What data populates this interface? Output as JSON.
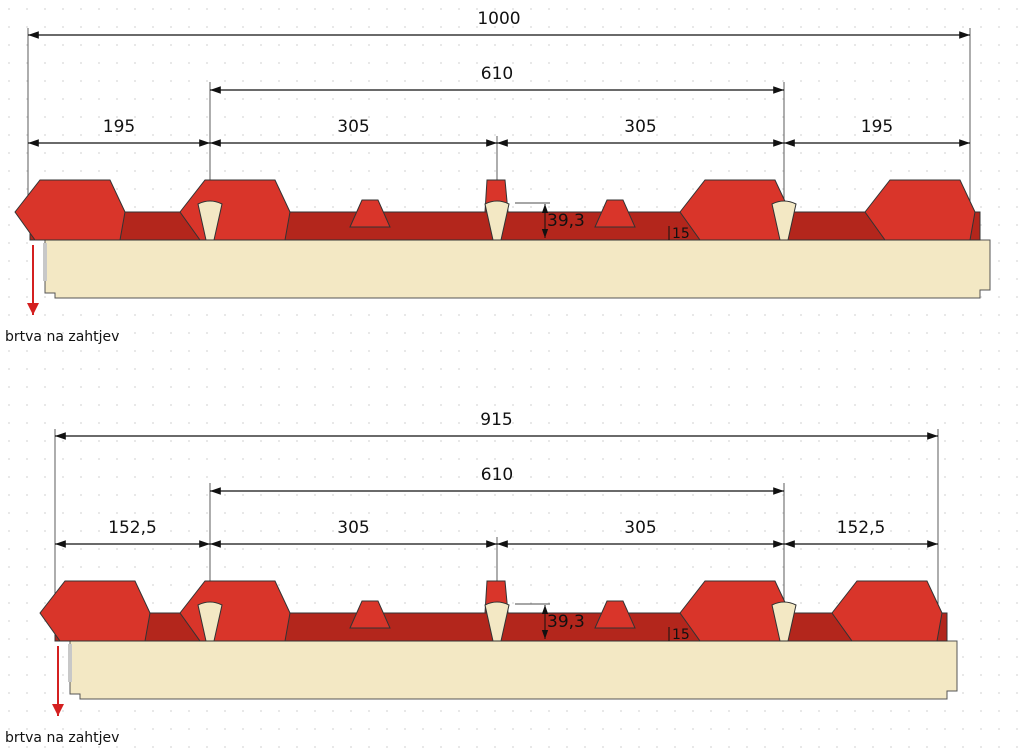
{
  "panels": [
    {
      "dimensions": {
        "total": "1000",
        "middle": "610",
        "segments": [
          "195",
          "305",
          "305",
          "195"
        ],
        "rib_height": "39,3",
        "small_rib_height": "15"
      },
      "seal_label": "brtva na zahtjev"
    },
    {
      "dimensions": {
        "total": "915",
        "middle": "610",
        "segments": [
          "152,5",
          "305",
          "305",
          "152,5"
        ],
        "rib_height": "39,3",
        "small_rib_height": "15"
      },
      "seal_label": "brtva na zahtjev"
    }
  ]
}
